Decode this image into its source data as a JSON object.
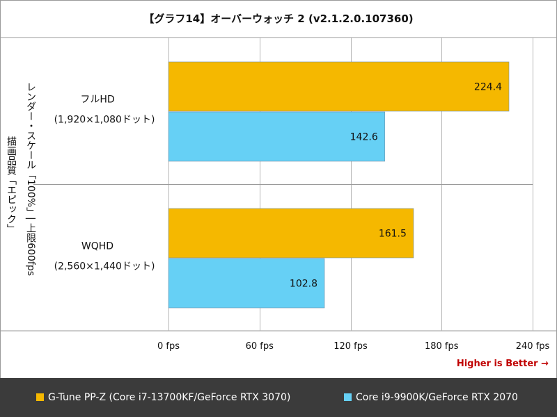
{
  "title": "【グラフ14】オーバーウォッチ 2 (v2.1.2.0.107360)",
  "y_axis_label_line1": "描画品質「エピック」",
  "y_axis_label_line2": "レンダー・スケール「100%」| 上限600fps",
  "higher_is_better": "Higher is Better →",
  "legend": [
    {
      "label": "G-Tune PP-Z (Core i7-13700KF/GeForce RTX 3070)",
      "color": "#f5b800"
    },
    {
      "label": "Core i9-9900K/GeForce RTX 2070",
      "color": "#66d0f5"
    }
  ],
  "chart_data": {
    "type": "bar",
    "orientation": "horizontal",
    "categories": [
      {
        "line1": "フルHD",
        "line2": "(1,920×1,080ドット)"
      },
      {
        "line1": "WQHD",
        "line2": "(2,560×1,440ドット)"
      }
    ],
    "series": [
      {
        "name": "G-Tune PP-Z (Core i7-13700KF/GeForce RTX 3070)",
        "color": "#f5b800",
        "values": [
          224.4,
          161.5
        ]
      },
      {
        "name": "Core i9-9900K/GeForce RTX 2070",
        "color": "#66d0f5",
        "values": [
          142.6,
          102.8
        ]
      }
    ],
    "x_ticks": [
      "0 fps",
      "60 fps",
      "120 fps",
      "180 fps",
      "240 fps"
    ],
    "x_tick_values": [
      0,
      60,
      120,
      180,
      240
    ],
    "xlim": [
      0,
      240
    ],
    "grid": true
  }
}
